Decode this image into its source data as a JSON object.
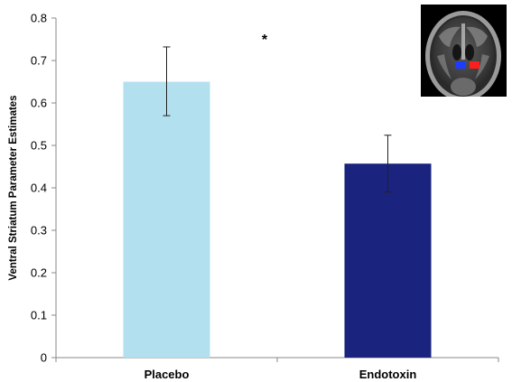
{
  "chart_data": {
    "type": "bar",
    "title": "",
    "xlabel": "",
    "ylabel": "Ventral Striatum Parameter Estimates",
    "ylim": [
      0,
      0.8
    ],
    "yticks": [
      0,
      0.1,
      0.2,
      0.3,
      0.4,
      0.5,
      0.6,
      0.7,
      0.8
    ],
    "ytick_labels": [
      "0",
      "0.1",
      "0.2",
      "0.3",
      "0.4",
      "0.5",
      "0.6",
      "0.7",
      "0.8"
    ],
    "grid": false,
    "legend": "none",
    "categories": [
      "Placebo",
      "Endotoxin"
    ],
    "values": [
      0.65,
      0.457
    ],
    "error_low": [
      0.57,
      0.39
    ],
    "error_high": [
      0.732,
      0.524
    ],
    "colors": [
      "#b3e0ef",
      "#1a237e"
    ],
    "annotations": [
      {
        "text": "*",
        "between": [
          "Placebo",
          "Endotoxin"
        ],
        "position": "above"
      }
    ],
    "inset_image": "brain-mri-coronal-slice",
    "inset_highlight_colors": [
      "#1e3cff",
      "#ff1e1e"
    ]
  }
}
